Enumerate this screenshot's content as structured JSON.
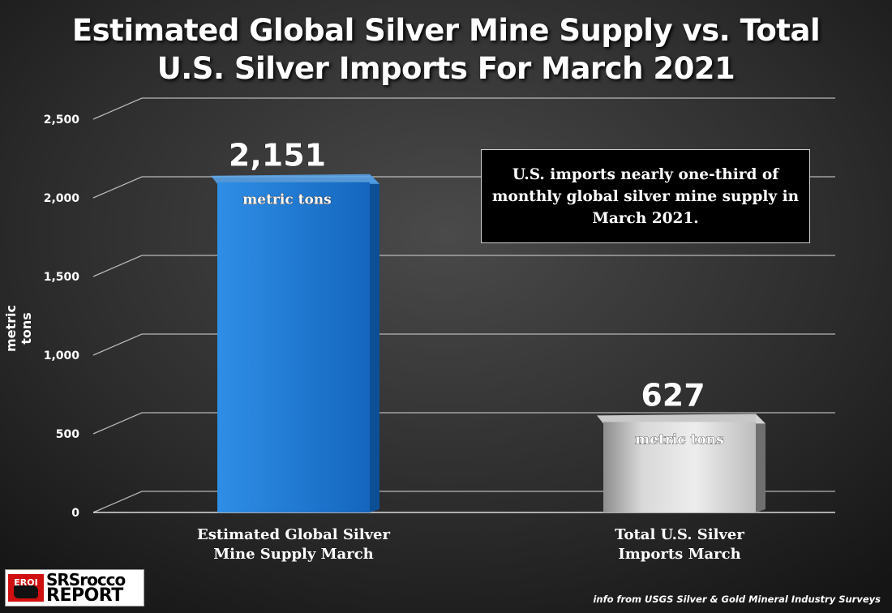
{
  "title_line1": "Estimated Global Silver Mine Supply vs. Total",
  "title_line2": "U.S. Silver Imports For March 2021",
  "callout": "U.S. imports nearly one-third of monthly global silver mine supply in March 2021.",
  "source": "info from USGS Silver & Gold Mineral Industry Surveys",
  "logo": {
    "badge": "EROI",
    "line1": "SRSrocco",
    "line2": "REPORT"
  },
  "colors": {
    "bar1": "#1f7fd6",
    "bar2": "#b9b9b9",
    "background": "#2b2b2b",
    "text": "#ffffff"
  },
  "chart_data": {
    "type": "bar",
    "ylabel": "metric tons",
    "ylim": [
      0,
      2500
    ],
    "yticks": [
      0,
      500,
      1000,
      1500,
      2000,
      2500
    ],
    "ytick_labels": [
      "0",
      "500",
      "1,000",
      "1,500",
      "2,000",
      "2,500"
    ],
    "grid": true,
    "categories": [
      [
        "Estimated Global Silver",
        "Mine Supply March"
      ],
      [
        "Total U.S. Silver",
        "Imports March"
      ]
    ],
    "values": [
      2151,
      627
    ],
    "value_labels": [
      "2,151",
      "627"
    ],
    "unit_labels": [
      "metric tons",
      "metric tons"
    ]
  }
}
